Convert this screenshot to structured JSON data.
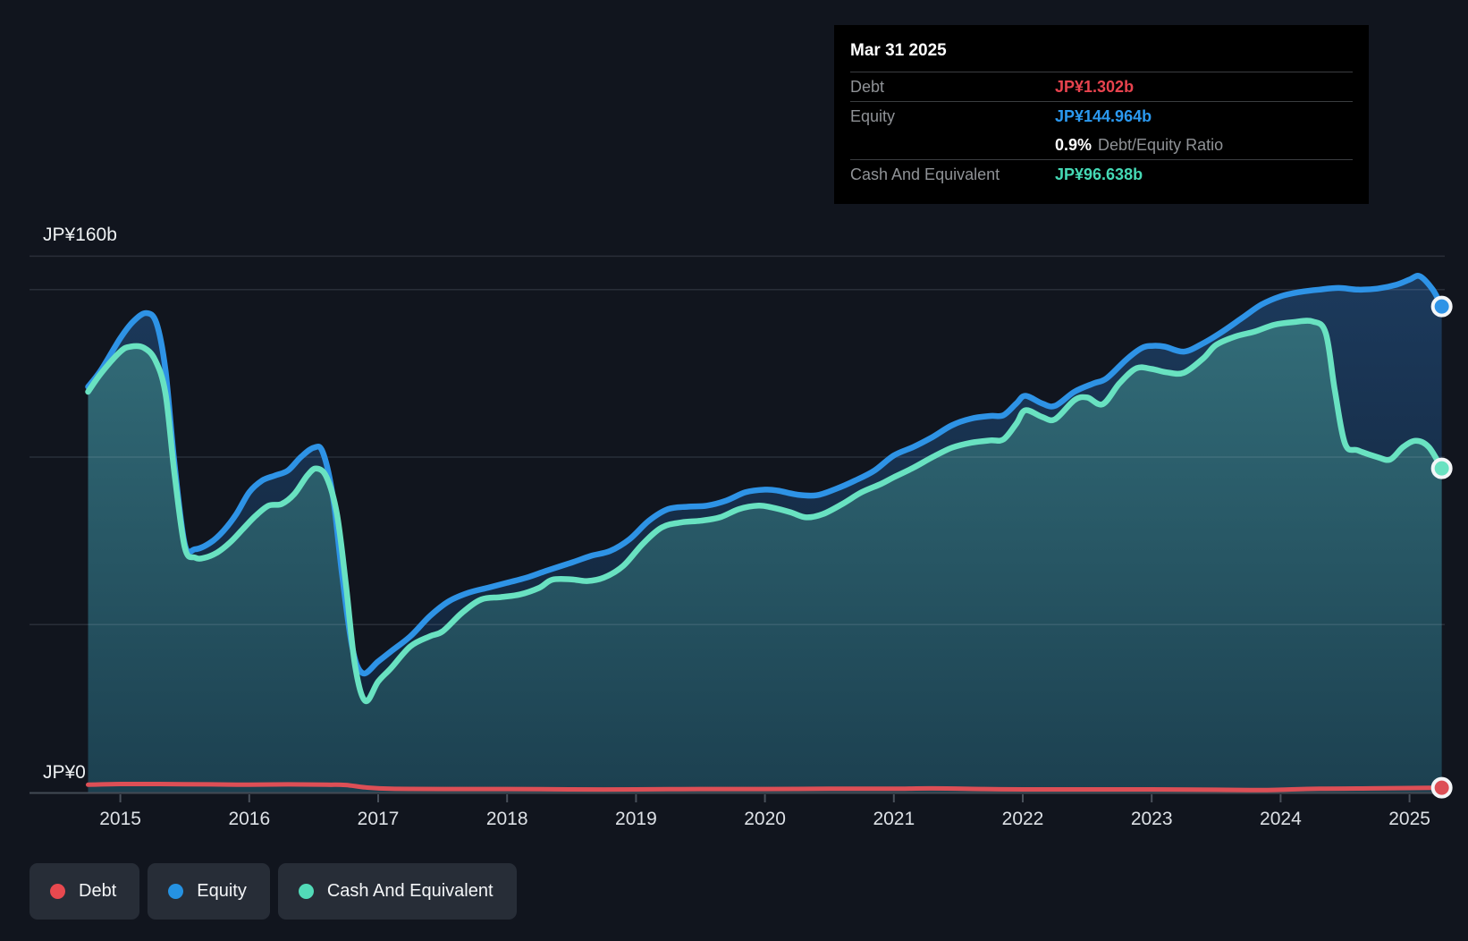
{
  "tooltip": {
    "date": "Mar 31 2025",
    "rows": {
      "debt": {
        "label": "Debt",
        "value": "JP¥1.302b"
      },
      "equity": {
        "label": "Equity",
        "value": "JP¥144.964b"
      },
      "ratio": {
        "pct": "0.9%",
        "label": "Debt/Equity Ratio"
      },
      "cash": {
        "label": "Cash And Equivalent",
        "value": "JP¥96.638b"
      }
    }
  },
  "axis": {
    "y_top_label": "JP¥160b",
    "y_zero_label": "JP¥0",
    "years": [
      "2015",
      "2016",
      "2017",
      "2018",
      "2019",
      "2020",
      "2021",
      "2022",
      "2023",
      "2024",
      "2025"
    ]
  },
  "legend": {
    "debt": {
      "label": "Debt",
      "color": "#e8494f"
    },
    "equity": {
      "label": "Equity",
      "color": "#2592e2"
    },
    "cash": {
      "label": "Cash And Equivalent",
      "color": "#52dbb8"
    }
  },
  "colors": {
    "background": "#11151e",
    "debt_line": "#dd4f56",
    "equity_line": "#2e93e6",
    "cash_line": "#69e2c1",
    "equity_fill_top": "#1c3a5c",
    "equity_fill_bottom": "#101f32",
    "cash_fill_top": "#326c78",
    "cash_fill_bottom": "#1c4050",
    "gridline": "rgba(205,220,228,0.13)",
    "axis_line": "#434a54",
    "tick": "#4a515b",
    "year_label": "#dde1e6",
    "y_label": "#eef1f3"
  },
  "chart_data": {
    "type": "area",
    "title": "Debt to Equity History (JP¥ billions)",
    "x_unit": "decimal_year",
    "x_range": [
      2014.74,
      2025.25
    ],
    "ylim": [
      0,
      160
    ],
    "grid_values": [
      160,
      150,
      100,
      50
    ],
    "x_ticks": [
      2015,
      2016,
      2017,
      2018,
      2019,
      2020,
      2021,
      2022,
      2023,
      2024,
      2025
    ],
    "legend_position": "bottom-left",
    "latest": {
      "date": "Mar 31 2025",
      "debt": 1.302,
      "equity": 144.964,
      "cash": 96.638,
      "debt_equity_ratio_pct": 0.9
    },
    "series": [
      {
        "name": "Equity",
        "color": "#2e93e6",
        "fill": "navy-gradient",
        "points": [
          [
            2014.75,
            121
          ],
          [
            2014.85,
            126
          ],
          [
            2015.0,
            135.5
          ],
          [
            2015.1,
            140.5
          ],
          [
            2015.2,
            143
          ],
          [
            2015.28,
            140
          ],
          [
            2015.35,
            126
          ],
          [
            2015.42,
            98
          ],
          [
            2015.5,
            74
          ],
          [
            2015.58,
            72.5
          ],
          [
            2015.7,
            74.5
          ],
          [
            2015.8,
            78
          ],
          [
            2015.9,
            83
          ],
          [
            2016.0,
            89.5
          ],
          [
            2016.1,
            93
          ],
          [
            2016.2,
            94.5
          ],
          [
            2016.3,
            96
          ],
          [
            2016.4,
            100
          ],
          [
            2016.5,
            102.8
          ],
          [
            2016.57,
            101.5
          ],
          [
            2016.65,
            88
          ],
          [
            2016.72,
            65
          ],
          [
            2016.8,
            43
          ],
          [
            2016.88,
            35.5
          ],
          [
            2017.0,
            39
          ],
          [
            2017.1,
            42
          ],
          [
            2017.25,
            46.5
          ],
          [
            2017.4,
            52.5
          ],
          [
            2017.55,
            57
          ],
          [
            2017.7,
            59.5
          ],
          [
            2017.85,
            61
          ],
          [
            2018.0,
            62.5
          ],
          [
            2018.15,
            64
          ],
          [
            2018.3,
            66
          ],
          [
            2018.5,
            68.5
          ],
          [
            2018.65,
            70.5
          ],
          [
            2018.8,
            72
          ],
          [
            2018.95,
            75.5
          ],
          [
            2019.1,
            81
          ],
          [
            2019.25,
            84.5
          ],
          [
            2019.4,
            85.2
          ],
          [
            2019.55,
            85.5
          ],
          [
            2019.7,
            87
          ],
          [
            2019.85,
            89.5
          ],
          [
            2020.0,
            90.3
          ],
          [
            2020.1,
            90
          ],
          [
            2020.25,
            88.8
          ],
          [
            2020.4,
            88.6
          ],
          [
            2020.55,
            90.5
          ],
          [
            2020.7,
            93
          ],
          [
            2020.85,
            96
          ],
          [
            2021.0,
            100.5
          ],
          [
            2021.15,
            103
          ],
          [
            2021.3,
            106
          ],
          [
            2021.45,
            109.5
          ],
          [
            2021.6,
            111.5
          ],
          [
            2021.75,
            112.3
          ],
          [
            2021.85,
            112.5
          ],
          [
            2021.95,
            116
          ],
          [
            2022.02,
            118.3
          ],
          [
            2022.15,
            116
          ],
          [
            2022.25,
            115.3
          ],
          [
            2022.4,
            119.5
          ],
          [
            2022.55,
            122
          ],
          [
            2022.65,
            123.5
          ],
          [
            2022.8,
            129
          ],
          [
            2022.92,
            132.5
          ],
          [
            2023.0,
            133.2
          ],
          [
            2023.1,
            133
          ],
          [
            2023.25,
            131.5
          ],
          [
            2023.4,
            134
          ],
          [
            2023.55,
            137.5
          ],
          [
            2023.7,
            141.5
          ],
          [
            2023.85,
            145.5
          ],
          [
            2024.0,
            148
          ],
          [
            2024.15,
            149.3
          ],
          [
            2024.3,
            150
          ],
          [
            2024.45,
            150.5
          ],
          [
            2024.6,
            150
          ],
          [
            2024.75,
            150.3
          ],
          [
            2024.9,
            151.5
          ],
          [
            2025.0,
            153
          ],
          [
            2025.08,
            154
          ],
          [
            2025.18,
            150
          ],
          [
            2025.25,
            144.964
          ]
        ]
      },
      {
        "name": "Cash And Equivalent",
        "color": "#69e2c1",
        "fill": "teal-gradient",
        "points": [
          [
            2014.75,
            119.5
          ],
          [
            2014.85,
            125
          ],
          [
            2015.0,
            131.5
          ],
          [
            2015.08,
            133
          ],
          [
            2015.18,
            132.7
          ],
          [
            2015.27,
            129
          ],
          [
            2015.35,
            119
          ],
          [
            2015.42,
            95
          ],
          [
            2015.5,
            73
          ],
          [
            2015.58,
            70
          ],
          [
            2015.65,
            69.9
          ],
          [
            2015.75,
            71.5
          ],
          [
            2015.85,
            74.5
          ],
          [
            2015.95,
            78.5
          ],
          [
            2016.05,
            82.5
          ],
          [
            2016.15,
            85.5
          ],
          [
            2016.25,
            86
          ],
          [
            2016.35,
            89
          ],
          [
            2016.45,
            94.5
          ],
          [
            2016.52,
            96.6
          ],
          [
            2016.6,
            94
          ],
          [
            2016.68,
            83
          ],
          [
            2016.75,
            62
          ],
          [
            2016.82,
            38
          ],
          [
            2016.9,
            27.2
          ],
          [
            2017.0,
            33
          ],
          [
            2017.1,
            37
          ],
          [
            2017.25,
            43.5
          ],
          [
            2017.4,
            46.5
          ],
          [
            2017.5,
            48
          ],
          [
            2017.65,
            53.5
          ],
          [
            2017.8,
            57.5
          ],
          [
            2017.95,
            58.2
          ],
          [
            2018.1,
            59
          ],
          [
            2018.25,
            61
          ],
          [
            2018.35,
            63.4
          ],
          [
            2018.5,
            63.5
          ],
          [
            2018.62,
            63
          ],
          [
            2018.75,
            64
          ],
          [
            2018.9,
            67.5
          ],
          [
            2019.05,
            74
          ],
          [
            2019.2,
            79
          ],
          [
            2019.35,
            80.5
          ],
          [
            2019.5,
            81
          ],
          [
            2019.65,
            82
          ],
          [
            2019.8,
            84.5
          ],
          [
            2019.95,
            85.5
          ],
          [
            2020.05,
            85
          ],
          [
            2020.2,
            83.5
          ],
          [
            2020.32,
            82
          ],
          [
            2020.45,
            83
          ],
          [
            2020.6,
            86
          ],
          [
            2020.75,
            89.5
          ],
          [
            2020.9,
            92
          ],
          [
            2021.0,
            94
          ],
          [
            2021.15,
            96.8
          ],
          [
            2021.3,
            100
          ],
          [
            2021.45,
            102.8
          ],
          [
            2021.6,
            104.3
          ],
          [
            2021.75,
            105
          ],
          [
            2021.85,
            105.3
          ],
          [
            2021.95,
            110
          ],
          [
            2022.02,
            114
          ],
          [
            2022.15,
            112
          ],
          [
            2022.25,
            111.3
          ],
          [
            2022.4,
            117
          ],
          [
            2022.5,
            117.8
          ],
          [
            2022.62,
            115.8
          ],
          [
            2022.75,
            122
          ],
          [
            2022.88,
            126.5
          ],
          [
            2023.0,
            126.3
          ],
          [
            2023.12,
            125.3
          ],
          [
            2023.25,
            125.2
          ],
          [
            2023.4,
            129.5
          ],
          [
            2023.5,
            133.5
          ],
          [
            2023.65,
            136
          ],
          [
            2023.8,
            137.5
          ],
          [
            2023.95,
            139.5
          ],
          [
            2024.1,
            140.3
          ],
          [
            2024.25,
            140.5
          ],
          [
            2024.35,
            137
          ],
          [
            2024.42,
            120
          ],
          [
            2024.5,
            104
          ],
          [
            2024.6,
            102
          ],
          [
            2024.75,
            100
          ],
          [
            2024.85,
            99.3
          ],
          [
            2024.95,
            103
          ],
          [
            2025.05,
            104.9
          ],
          [
            2025.15,
            103
          ],
          [
            2025.25,
            96.638
          ]
        ]
      },
      {
        "name": "Debt",
        "color": "#dd4f56",
        "fill": "none",
        "points": [
          [
            2014.75,
            2.2
          ],
          [
            2015.0,
            2.4
          ],
          [
            2015.3,
            2.4
          ],
          [
            2015.7,
            2.3
          ],
          [
            2016.0,
            2.2
          ],
          [
            2016.3,
            2.3
          ],
          [
            2016.6,
            2.2
          ],
          [
            2016.75,
            2.1
          ],
          [
            2016.9,
            1.4
          ],
          [
            2017.1,
            1.0
          ],
          [
            2017.5,
            0.9
          ],
          [
            2018.0,
            0.9
          ],
          [
            2018.5,
            0.8
          ],
          [
            2019.0,
            0.8
          ],
          [
            2019.5,
            0.9
          ],
          [
            2020.0,
            0.9
          ],
          [
            2020.5,
            1.0
          ],
          [
            2021.0,
            1.0
          ],
          [
            2021.3,
            1.1
          ],
          [
            2021.7,
            0.9
          ],
          [
            2022.0,
            0.8
          ],
          [
            2022.5,
            0.8
          ],
          [
            2023.0,
            0.8
          ],
          [
            2023.5,
            0.7
          ],
          [
            2023.8,
            0.6
          ],
          [
            2024.0,
            0.7
          ],
          [
            2024.3,
            1.0
          ],
          [
            2024.7,
            1.1
          ],
          [
            2025.0,
            1.2
          ],
          [
            2025.25,
            1.302
          ]
        ]
      }
    ]
  }
}
